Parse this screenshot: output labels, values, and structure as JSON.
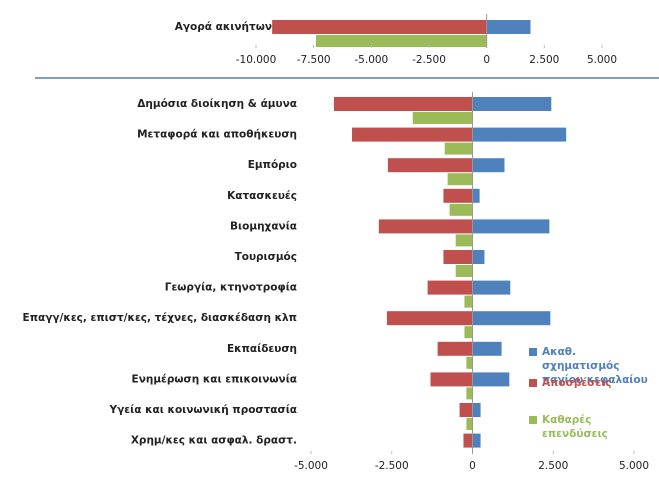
{
  "chart_data": [
    {
      "type": "barh",
      "categories": [
        "Αγορά ακινήτων"
      ],
      "series": [
        {
          "color": "#4f81bd",
          "values": [
            1900
          ]
        },
        {
          "color": "#c0504d",
          "values": [
            -9300
          ]
        },
        {
          "color": "#9bbb59",
          "values": [
            -7400
          ]
        }
      ],
      "xlim": [
        -10000,
        5000
      ],
      "xticks": [
        {
          "value": -10000,
          "label": "-10.000"
        },
        {
          "value": -7500,
          "label": "-7.500"
        },
        {
          "value": -5000,
          "label": "-5.000"
        },
        {
          "value": -2500,
          "label": "-2.500"
        },
        0,
        {
          "value": 2500,
          "label": "2.500"
        },
        {
          "value": 5000,
          "label": "5.000"
        }
      ]
    },
    {
      "type": "barh",
      "categories": [
        "Δημόσια διοίκηση & άμυνα",
        "Μεταφορά και αποθήκευση",
        "Εμπόριο",
        "Κατασκευές",
        "Βιομηχανία",
        "Τουρισμός",
        "Γεωργία, κτηνοτροφία",
        "Επαγγ/κες, επιστ/κες, τέχνες, διασκέδαση κλπ",
        "Εκπαίδευση",
        "Ενημέρωση και επικοινωνία",
        "Υγεία και κοινωνική προστασία",
        "Χρημ/κες και ασφαλ. δραστ."
      ],
      "series": [
        {
          "name": "Ακαθ. σχηματισμός παγίου κεφαλαίου",
          "color": "#4f81bd",
          "values": [
            2440,
            2900,
            990,
            220,
            2380,
            370,
            1170,
            2410,
            900,
            1140,
            250,
            250
          ]
        },
        {
          "name": "Αποσβέσεις",
          "color": "#c0504d",
          "values": [
            -4290,
            -3730,
            -2620,
            -900,
            -2900,
            -900,
            -1390,
            -2650,
            -1080,
            -1300,
            -400,
            -280
          ]
        },
        {
          "name": "Καθαρές επενδύσεις",
          "color": "#9bbb59",
          "values": [
            -1850,
            -860,
            -770,
            -710,
            -520,
            -520,
            -250,
            -250,
            -190,
            -190,
            -190,
            0
          ]
        }
      ],
      "xlim": [
        -5000,
        5000
      ],
      "xticks": [
        {
          "value": -5000,
          "label": "-5.000"
        },
        {
          "value": -2500,
          "label": "-2.500"
        },
        0,
        {
          "value": 2500,
          "label": "2.500"
        },
        {
          "value": 5000,
          "label": "5.000"
        }
      ]
    }
  ]
}
